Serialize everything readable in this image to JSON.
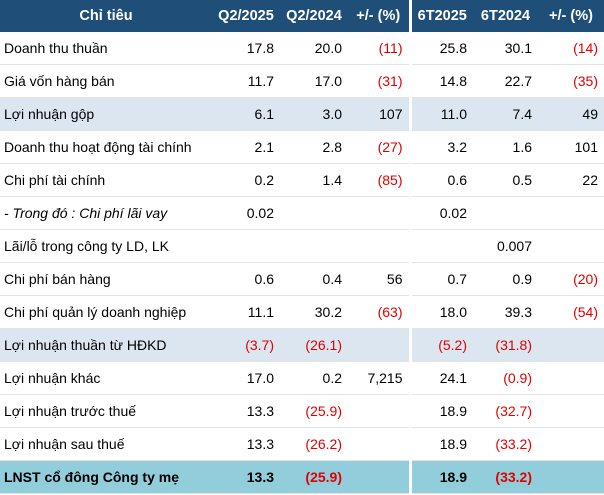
{
  "table": {
    "header": [
      "Chỉ tiêu",
      "Q2/2025",
      "Q2/2024",
      "+/- (%)",
      "6T2025",
      "6T2024",
      "+/- (%)"
    ],
    "rows": [
      {
        "label": "Doanh thu thuần",
        "cells": [
          "17.8",
          "20.0",
          "(11)",
          "25.8",
          "30.1",
          "(14)"
        ]
      },
      {
        "label": "Giá vốn hàng bán",
        "cells": [
          "11.7",
          "17.0",
          "(31)",
          "14.8",
          "22.7",
          "(35)"
        ]
      },
      {
        "label": "Lợi nhuận gộp",
        "cells": [
          "6.1",
          "3.0",
          "107",
          "11.0",
          "7.4",
          "49"
        ]
      },
      {
        "label": "Doanh thu hoạt động tài chính",
        "cells": [
          "2.1",
          "2.8",
          "(27)",
          "3.2",
          "1.6",
          "101"
        ]
      },
      {
        "label": "Chi phí tài chính",
        "cells": [
          "0.2",
          "1.4",
          "(85)",
          "0.6",
          "0.5",
          "22"
        ]
      },
      {
        "label": "- Trong đó : Chi phí lãi vay",
        "cells": [
          "0.02",
          null,
          null,
          "0.02",
          null,
          null
        ]
      },
      {
        "label": "Lãi/lỗ trong công ty LD, LK",
        "cells": [
          null,
          null,
          null,
          null,
          "0.007",
          null
        ]
      },
      {
        "label": "Chi phí bán hàng",
        "cells": [
          "0.6",
          "0.4",
          "56",
          "0.7",
          "0.9",
          "(20)"
        ]
      },
      {
        "label": "Chi phí quản lý doanh nghiệp",
        "cells": [
          "11.1",
          "30.2",
          "(63)",
          "18.0",
          "39.3",
          "(54)"
        ]
      },
      {
        "label": "Lợi nhuận thuần từ HĐKD",
        "cells": [
          "(3.7)",
          "(26.1)",
          null,
          "(5.2)",
          "(31.8)",
          null
        ]
      },
      {
        "label": "Lợi nhuận khác",
        "cells": [
          "17.0",
          "0.2",
          "7,215",
          "24.1",
          "(0.9)",
          null
        ]
      },
      {
        "label": "Lợi nhuận trước thuế",
        "cells": [
          "13.3",
          "(25.9)",
          null,
          "18.9",
          "(32.7)",
          null
        ]
      },
      {
        "label": "Lợi nhuận sau thuế",
        "cells": [
          "13.3",
          "(26.2)",
          null,
          "18.9",
          "(33.2)",
          null
        ]
      },
      {
        "label": "LNST cổ đông Công ty mẹ",
        "cells": [
          "13.3",
          "(25.9)",
          null,
          "18.9",
          "(33.2)",
          null
        ]
      }
    ]
  }
}
